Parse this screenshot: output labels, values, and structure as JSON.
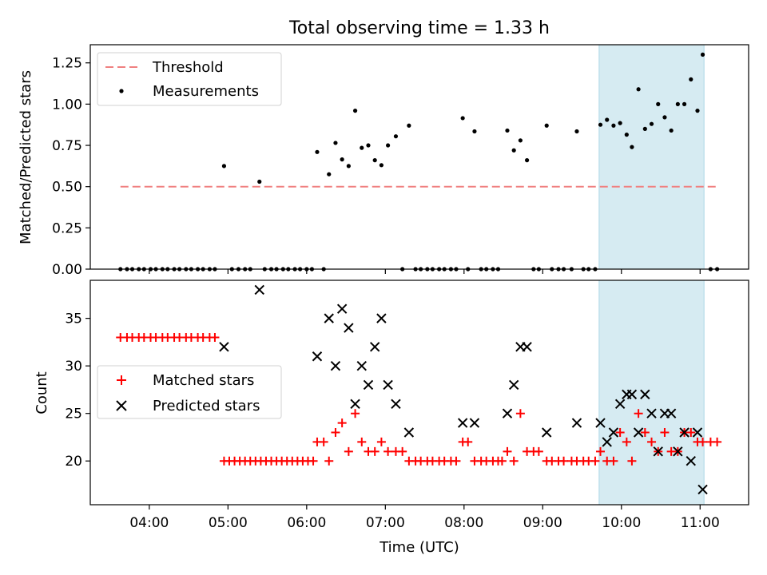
{
  "title": "Total observing time = 1.33 h",
  "shaded_span_color": "#add8e6",
  "chart_data": [
    {
      "type": "scatter",
      "panel": "top",
      "xlabel": "",
      "ylabel": "Matched/Predicted stars",
      "xlim": [
        "03:15",
        "11:37"
      ],
      "ylim": [
        0,
        1.36
      ],
      "yticks": [
        "0.00",
        "0.25",
        "0.50",
        "0.75",
        "1.00",
        "1.25"
      ],
      "shaded_span": [
        "09:43",
        "11:03"
      ],
      "legend": {
        "location": "upper-left",
        "entries": [
          "Threshold",
          "Measurements"
        ]
      },
      "threshold": {
        "name": "Threshold",
        "y": 0.5,
        "x": [
          "03:38",
          "11:13"
        ],
        "color": "#f08080",
        "style": "dashed"
      },
      "measurements": {
        "name": "Measurements",
        "color": "#000000",
        "points": [
          [
            "03:38",
            0
          ],
          [
            "03:43",
            0
          ],
          [
            "03:47",
            0
          ],
          [
            "03:52",
            0
          ],
          [
            "03:56",
            0
          ],
          [
            "04:01",
            0
          ],
          [
            "04:05",
            0
          ],
          [
            "04:10",
            0
          ],
          [
            "04:14",
            0
          ],
          [
            "04:19",
            0
          ],
          [
            "04:23",
            0
          ],
          [
            "04:28",
            0
          ],
          [
            "04:32",
            0
          ],
          [
            "04:37",
            0
          ],
          [
            "04:41",
            0
          ],
          [
            "04:46",
            0
          ],
          [
            "04:50",
            0
          ],
          [
            "04:57",
            0.625
          ],
          [
            "05:03",
            0
          ],
          [
            "05:08",
            0
          ],
          [
            "05:13",
            0
          ],
          [
            "05:17",
            0
          ],
          [
            "05:24",
            0.53
          ],
          [
            "05:28",
            0
          ],
          [
            "05:33",
            0
          ],
          [
            "05:37",
            0
          ],
          [
            "05:42",
            0
          ],
          [
            "05:46",
            0
          ],
          [
            "05:51",
            0
          ],
          [
            "05:55",
            0
          ],
          [
            "06:00",
            0
          ],
          [
            "06:04",
            0
          ],
          [
            "06:08",
            0.71
          ],
          [
            "06:13",
            0
          ],
          [
            "06:17",
            0.575
          ],
          [
            "06:22",
            0.765
          ],
          [
            "06:27",
            0.665
          ],
          [
            "06:32",
            0.625
          ],
          [
            "06:37",
            0.96
          ],
          [
            "06:42",
            0.735
          ],
          [
            "06:47",
            0.75
          ],
          [
            "06:52",
            0.66
          ],
          [
            "06:57",
            0.63
          ],
          [
            "07:02",
            0.75
          ],
          [
            "07:08",
            0.805
          ],
          [
            "07:13",
            0
          ],
          [
            "07:18",
            0.87
          ],
          [
            "07:23",
            0
          ],
          [
            "07:27",
            0
          ],
          [
            "07:32",
            0
          ],
          [
            "07:36",
            0
          ],
          [
            "07:41",
            0
          ],
          [
            "07:45",
            0
          ],
          [
            "07:50",
            0
          ],
          [
            "07:54",
            0
          ],
          [
            "07:59",
            0.915
          ],
          [
            "08:03",
            0
          ],
          [
            "08:08",
            0.835
          ],
          [
            "08:13",
            0
          ],
          [
            "08:17",
            0
          ],
          [
            "08:22",
            0
          ],
          [
            "08:26",
            0
          ],
          [
            "08:33",
            0.84
          ],
          [
            "08:38",
            0.72
          ],
          [
            "08:43",
            0.78
          ],
          [
            "08:48",
            0.66
          ],
          [
            "08:53",
            0
          ],
          [
            "08:57",
            0
          ],
          [
            "09:03",
            0.87
          ],
          [
            "09:07",
            0
          ],
          [
            "09:12",
            0
          ],
          [
            "09:16",
            0
          ],
          [
            "09:22",
            0
          ],
          [
            "09:26",
            0.835
          ],
          [
            "09:31",
            0
          ],
          [
            "09:35",
            0
          ],
          [
            "09:40",
            0
          ],
          [
            "09:44",
            0.875
          ],
          [
            "09:49",
            0.905
          ],
          [
            "09:54",
            0.87
          ],
          [
            "09:59",
            0.885
          ],
          [
            "10:04",
            0.815
          ],
          [
            "10:08",
            0.74
          ],
          [
            "10:13",
            1.09
          ],
          [
            "10:18",
            0.85
          ],
          [
            "10:23",
            0.88
          ],
          [
            "10:28",
            1.0
          ],
          [
            "10:33",
            0.92
          ],
          [
            "10:38",
            0.84
          ],
          [
            "10:43",
            1.0
          ],
          [
            "10:48",
            1.0
          ],
          [
            "10:53",
            1.15
          ],
          [
            "10:58",
            0.96
          ],
          [
            "11:02",
            1.3
          ],
          [
            "11:08",
            0
          ],
          [
            "11:13",
            0
          ]
        ]
      }
    },
    {
      "type": "scatter",
      "panel": "bottom",
      "xlabel": "Time (UTC)",
      "ylabel": "Count",
      "xlim": [
        "03:15",
        "11:37"
      ],
      "ylim": [
        15.4,
        39.0
      ],
      "yticks": [
        "20",
        "25",
        "30",
        "35"
      ],
      "xticks": [
        "04:00",
        "05:00",
        "06:00",
        "07:00",
        "08:00",
        "09:00",
        "10:00",
        "11:00"
      ],
      "shaded_span": [
        "09:43",
        "11:03"
      ],
      "legend": {
        "location": "center-left",
        "entries": [
          "Matched stars",
          "Predicted stars"
        ]
      },
      "series": [
        {
          "name": "Matched stars",
          "marker": "+",
          "color": "#ff0000",
          "points": [
            [
              "03:38",
              33
            ],
            [
              "03:43",
              33
            ],
            [
              "03:47",
              33
            ],
            [
              "03:52",
              33
            ],
            [
              "03:56",
              33
            ],
            [
              "04:01",
              33
            ],
            [
              "04:05",
              33
            ],
            [
              "04:10",
              33
            ],
            [
              "04:14",
              33
            ],
            [
              "04:19",
              33
            ],
            [
              "04:23",
              33
            ],
            [
              "04:28",
              33
            ],
            [
              "04:32",
              33
            ],
            [
              "04:37",
              33
            ],
            [
              "04:41",
              33
            ],
            [
              "04:46",
              33
            ],
            [
              "04:50",
              33
            ],
            [
              "04:57",
              20
            ],
            [
              "05:01",
              20
            ],
            [
              "05:05",
              20
            ],
            [
              "05:09",
              20
            ],
            [
              "05:13",
              20
            ],
            [
              "05:17",
              20
            ],
            [
              "05:21",
              20
            ],
            [
              "05:25",
              20
            ],
            [
              "05:29",
              20
            ],
            [
              "05:33",
              20
            ],
            [
              "05:37",
              20
            ],
            [
              "05:41",
              20
            ],
            [
              "05:45",
              20
            ],
            [
              "05:49",
              20
            ],
            [
              "05:53",
              20
            ],
            [
              "05:57",
              20
            ],
            [
              "06:01",
              20
            ],
            [
              "06:05",
              20
            ],
            [
              "06:08",
              22
            ],
            [
              "06:13",
              22
            ],
            [
              "06:17",
              20
            ],
            [
              "06:22",
              23
            ],
            [
              "06:27",
              24
            ],
            [
              "06:32",
              21
            ],
            [
              "06:37",
              25
            ],
            [
              "06:42",
              22
            ],
            [
              "06:47",
              21
            ],
            [
              "06:52",
              21
            ],
            [
              "06:57",
              22
            ],
            [
              "07:02",
              21
            ],
            [
              "07:08",
              21
            ],
            [
              "07:13",
              21
            ],
            [
              "07:18",
              20
            ],
            [
              "07:23",
              20
            ],
            [
              "07:27",
              20
            ],
            [
              "07:32",
              20
            ],
            [
              "07:36",
              20
            ],
            [
              "07:41",
              20
            ],
            [
              "07:45",
              20
            ],
            [
              "07:50",
              20
            ],
            [
              "07:54",
              20
            ],
            [
              "07:59",
              22
            ],
            [
              "08:03",
              22
            ],
            [
              "08:08",
              20
            ],
            [
              "08:13",
              20
            ],
            [
              "08:17",
              20
            ],
            [
              "08:22",
              20
            ],
            [
              "08:26",
              20
            ],
            [
              "08:29",
              20
            ],
            [
              "08:33",
              21
            ],
            [
              "08:38",
              20
            ],
            [
              "08:43",
              25
            ],
            [
              "08:48",
              21
            ],
            [
              "08:53",
              21
            ],
            [
              "08:57",
              21
            ],
            [
              "09:03",
              20
            ],
            [
              "09:07",
              20
            ],
            [
              "09:12",
              20
            ],
            [
              "09:16",
              20
            ],
            [
              "09:22",
              20
            ],
            [
              "09:26",
              20
            ],
            [
              "09:31",
              20
            ],
            [
              "09:35",
              20
            ],
            [
              "09:40",
              20
            ],
            [
              "09:44",
              21
            ],
            [
              "09:49",
              20
            ],
            [
              "09:54",
              20
            ],
            [
              "09:59",
              23
            ],
            [
              "10:04",
              22
            ],
            [
              "10:08",
              20
            ],
            [
              "10:13",
              25
            ],
            [
              "10:18",
              23
            ],
            [
              "10:23",
              22
            ],
            [
              "10:28",
              21
            ],
            [
              "10:33",
              23
            ],
            [
              "10:38",
              21
            ],
            [
              "10:43",
              21
            ],
            [
              "10:48",
              23
            ],
            [
              "10:53",
              23
            ],
            [
              "10:58",
              22
            ],
            [
              "11:02",
              22
            ],
            [
              "11:08",
              22
            ],
            [
              "11:13",
              22
            ]
          ]
        },
        {
          "name": "Predicted stars",
          "marker": "x",
          "color": "#000000",
          "points": [
            [
              "04:57",
              32
            ],
            [
              "05:24",
              38
            ],
            [
              "06:08",
              31
            ],
            [
              "06:17",
              35
            ],
            [
              "06:22",
              30
            ],
            [
              "06:27",
              36
            ],
            [
              "06:32",
              34
            ],
            [
              "06:37",
              26
            ],
            [
              "06:42",
              30
            ],
            [
              "06:47",
              28
            ],
            [
              "06:52",
              32
            ],
            [
              "06:57",
              35
            ],
            [
              "07:02",
              28
            ],
            [
              "07:08",
              26
            ],
            [
              "07:18",
              23
            ],
            [
              "07:59",
              24
            ],
            [
              "08:08",
              24
            ],
            [
              "08:33",
              25
            ],
            [
              "08:38",
              28
            ],
            [
              "08:43",
              32
            ],
            [
              "08:48",
              32
            ],
            [
              "09:03",
              23
            ],
            [
              "09:26",
              24
            ],
            [
              "09:44",
              24
            ],
            [
              "09:49",
              22
            ],
            [
              "09:54",
              23
            ],
            [
              "09:59",
              26
            ],
            [
              "10:04",
              27
            ],
            [
              "10:08",
              27
            ],
            [
              "10:13",
              23
            ],
            [
              "10:18",
              27
            ],
            [
              "10:23",
              25
            ],
            [
              "10:28",
              21
            ],
            [
              "10:33",
              25
            ],
            [
              "10:38",
              25
            ],
            [
              "10:43",
              21
            ],
            [
              "10:48",
              23
            ],
            [
              "10:53",
              20
            ],
            [
              "10:58",
              23
            ],
            [
              "11:02",
              17
            ]
          ]
        }
      ]
    }
  ]
}
